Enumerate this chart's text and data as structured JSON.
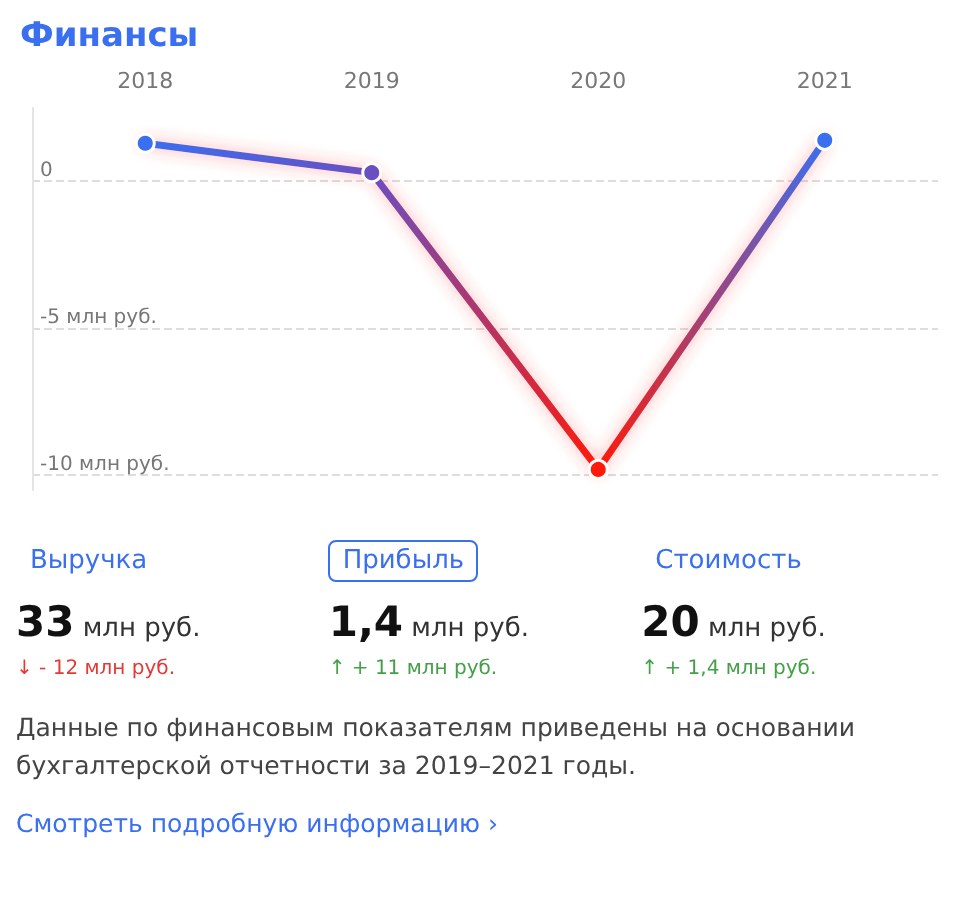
{
  "chart_data": {
    "type": "line",
    "title": "Финансы",
    "categories": [
      "2018",
      "2019",
      "2020",
      "2021"
    ],
    "series": [
      {
        "colors": [
          "#3a6ff0",
          "#6a4fc0",
          "#ff1a0a",
          "#3a6ff0"
        ],
        "values": [
          1.3,
          0.3,
          -9.8,
          1.4
        ]
      }
    ],
    "ylim": [
      -10.5,
      2.5
    ],
    "yticks": [
      {
        "value": 0,
        "label": "0"
      },
      {
        "value": -5,
        "label": "-5 млн руб."
      },
      {
        "value": -10,
        "label": "-10 млн руб."
      }
    ],
    "grid": "y",
    "marker": "circle",
    "line_style": "solid",
    "annotations": [
      "Выручка",
      "33 млн руб.",
      "↓ - 12 млн руб.",
      "Прибыль",
      "1,4 млн руб.",
      "↑ + 11 млн руб.",
      "Стоимость",
      "20 млн руб.",
      "↑ + 1,4 млн руб.",
      "Данные по финансовым показателям приведены на основании бухгалтерской отчетности за 2019–2021 годы.",
      "Смотреть подробную информацию ›"
    ]
  }
}
